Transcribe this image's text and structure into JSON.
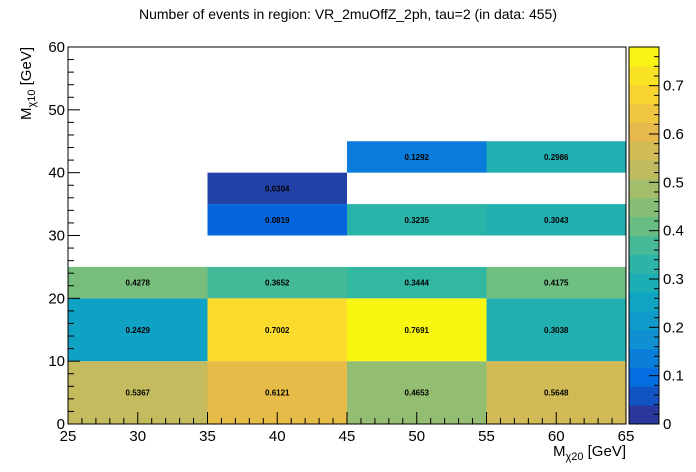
{
  "chart_data": {
    "type": "heatmap",
    "title": "Number of events in region: VR_2muOffZ_2ph, tau=2 (in data: 455)",
    "xlabel": {
      "base": "M",
      "sub": "χ20",
      "unit": " [GeV]"
    },
    "ylabel": {
      "base": "M",
      "sub": "χ10",
      "unit": " [GeV]"
    },
    "xlim": [
      25,
      65
    ],
    "ylim": [
      0,
      60
    ],
    "zlim": [
      0,
      0.78
    ],
    "x_ticks": [
      25,
      30,
      35,
      40,
      45,
      50,
      55,
      60,
      65
    ],
    "y_ticks": [
      0,
      10,
      20,
      30,
      40,
      50,
      60
    ],
    "z_ticks": [
      0,
      0.1,
      0.2,
      0.3,
      0.4,
      0.5,
      0.6,
      0.7
    ],
    "z_tick_labels": [
      "0",
      "0.1",
      "0.2",
      "0.3",
      "0.4",
      "0.5",
      "0.6",
      "0.7"
    ],
    "palette": [
      "#352a87",
      "#0268e1",
      "#108ed2",
      "#0fa7c1",
      "#33b7a0",
      "#7cbf7b",
      "#bbbc61",
      "#e6b94a",
      "#fbd830",
      "#f9fb0e"
    ],
    "cells": [
      {
        "x0": 25,
        "x1": 35,
        "y0": 0,
        "y1": 10,
        "value": 0.5367,
        "label": "0.5367"
      },
      {
        "x0": 35,
        "x1": 45,
        "y0": 0,
        "y1": 10,
        "value": 0.6121,
        "label": "0.6121"
      },
      {
        "x0": 45,
        "x1": 55,
        "y0": 0,
        "y1": 10,
        "value": 0.4653,
        "label": "0.4653"
      },
      {
        "x0": 55,
        "x1": 65,
        "y0": 0,
        "y1": 10,
        "value": 0.5648,
        "label": "0.5648"
      },
      {
        "x0": 25,
        "x1": 35,
        "y0": 10,
        "y1": 20,
        "value": 0.2429,
        "label": "0.2429"
      },
      {
        "x0": 35,
        "x1": 45,
        "y0": 10,
        "y1": 20,
        "value": 0.7002,
        "label": "0.7002"
      },
      {
        "x0": 45,
        "x1": 55,
        "y0": 10,
        "y1": 20,
        "value": 0.7691,
        "label": "0.7691"
      },
      {
        "x0": 55,
        "x1": 65,
        "y0": 10,
        "y1": 20,
        "value": 0.3038,
        "label": "0.3038"
      },
      {
        "x0": 25,
        "x1": 35,
        "y0": 20,
        "y1": 25,
        "value": 0.4278,
        "label": "0.4278"
      },
      {
        "x0": 35,
        "x1": 45,
        "y0": 20,
        "y1": 25,
        "value": 0.3652,
        "label": "0.3652"
      },
      {
        "x0": 45,
        "x1": 55,
        "y0": 20,
        "y1": 25,
        "value": 0.3444,
        "label": "0.3444"
      },
      {
        "x0": 55,
        "x1": 65,
        "y0": 20,
        "y1": 25,
        "value": 0.4175,
        "label": "0.4175"
      },
      {
        "x0": 35,
        "x1": 45,
        "y0": 30,
        "y1": 35,
        "value": 0.0819,
        "label": "0.0819"
      },
      {
        "x0": 45,
        "x1": 55,
        "y0": 30,
        "y1": 35,
        "value": 0.3235,
        "label": "0.3235"
      },
      {
        "x0": 55,
        "x1": 65,
        "y0": 30,
        "y1": 35,
        "value": 0.3043,
        "label": "0.3043"
      },
      {
        "x0": 35,
        "x1": 45,
        "y0": 35,
        "y1": 40,
        "value": 0.0304,
        "label": "0.0304"
      },
      {
        "x0": 45,
        "x1": 55,
        "y0": 40,
        "y1": 45,
        "value": 0.1292,
        "label": "0.1292"
      },
      {
        "x0": 55,
        "x1": 65,
        "y0": 40,
        "y1": 45,
        "value": 0.2986,
        "label": "0.2986"
      }
    ],
    "grid": false,
    "legend": "colorbar-right"
  }
}
